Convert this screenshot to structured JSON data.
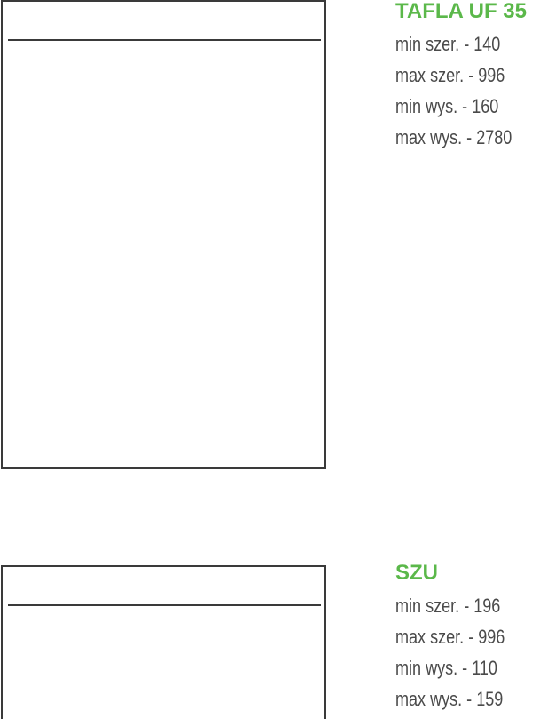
{
  "colors": {
    "title": "#5bb84a",
    "text": "#4a4a4a",
    "outline": "#3a3a3a"
  },
  "products": [
    {
      "title": "TAFLA UF 35",
      "specs": [
        "min szer. - 140",
        "max szer. - 996",
        "min wys. - 160",
        "max wys. - 2780"
      ]
    },
    {
      "title": "SZU",
      "specs": [
        "min szer. - 196",
        "max szer. - 996",
        "min wys. - 110",
        "max wys. - 159"
      ]
    }
  ]
}
